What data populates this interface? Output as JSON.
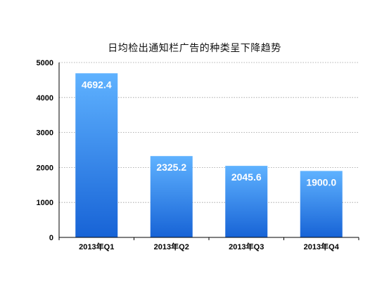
{
  "chart_data": {
    "type": "bar",
    "title": "日均检出通知栏广告的种类呈下降趋势",
    "categories": [
      "2013年Q1",
      "2013年Q2",
      "2013年Q3",
      "2013年Q4"
    ],
    "values": [
      4692.4,
      2325.2,
      2045.6,
      1900.0
    ],
    "value_labels": [
      "4692.4",
      "2325.2",
      "2045.6",
      "1900.0"
    ],
    "yticks": [
      "0",
      "1000",
      "2000",
      "3000",
      "4000",
      "5000"
    ],
    "ylim": [
      0,
      5000
    ],
    "grid": true,
    "legend": "none",
    "colors": {
      "bar_top": "#5fb2ff",
      "bar_bottom": "#1763d6",
      "grid": "#9a9a9a",
      "axis": "#000000",
      "value_label": "#ffffff"
    }
  }
}
